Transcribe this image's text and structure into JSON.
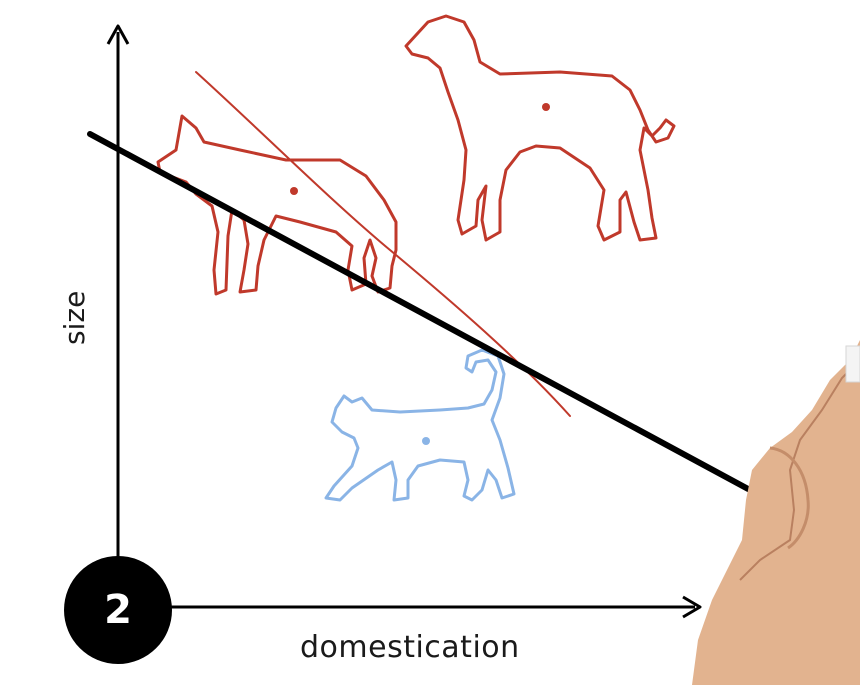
{
  "diagram": {
    "x_axis_label": "domestication",
    "y_axis_label": "size",
    "step_number": "2",
    "colors": {
      "canine": "#c0392b",
      "cat": "#8ab4e6",
      "axis": "#000000",
      "boundary": "#000000",
      "sketch": "#c0392b"
    },
    "items": [
      {
        "name": "wolf",
        "group": "canine"
      },
      {
        "name": "dog",
        "group": "canine"
      },
      {
        "name": "cat",
        "group": "cat"
      }
    ]
  }
}
